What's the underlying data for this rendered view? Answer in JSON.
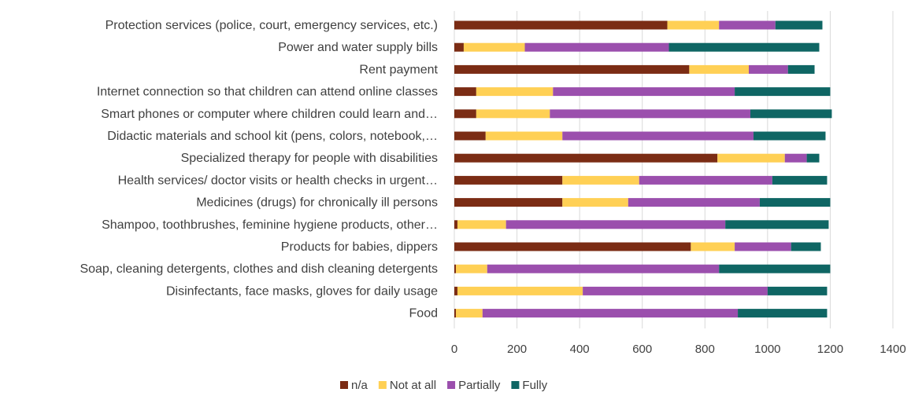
{
  "chart_data": {
    "type": "bar",
    "orientation": "horizontal",
    "stacked": true,
    "categories": [
      "Protection services (police, court, emergency services, etc.)",
      "Power and water supply bills",
      "Rent payment",
      "Internet connection so that children can attend online classes",
      "Smart phones or computer where children could learn and…",
      "Didactic materials and school kit (pens, colors, notebook,…",
      "Specialized therapy for people with disabilities",
      "Health services/ doctor visits or health checks in urgent…",
      "Medicines (drugs) for chronically ill persons",
      "Shampoo, toothbrushes, feminine hygiene products, other…",
      "Products for babies, dippers",
      "Soap, cleaning detergents, clothes and dish cleaning  detergents",
      "Disinfectants, face masks,  gloves for daily usage",
      "Food"
    ],
    "series": [
      {
        "name": "n/a",
        "color": "#7b2c14",
        "values": [
          680,
          30,
          750,
          70,
          70,
          100,
          840,
          345,
          345,
          10,
          755,
          5,
          10,
          5
        ]
      },
      {
        "name": "Not at all",
        "color": "#ffd055",
        "values": [
          165,
          195,
          190,
          245,
          235,
          245,
          215,
          245,
          210,
          155,
          140,
          100,
          400,
          85
        ]
      },
      {
        "name": "Partially",
        "color": "#9b4fad",
        "values": [
          180,
          460,
          125,
          580,
          640,
          610,
          70,
          425,
          420,
          700,
          180,
          740,
          590,
          815
        ]
      },
      {
        "name": "Fully",
        "color": "#0f6664",
        "values": [
          150,
          480,
          85,
          305,
          260,
          230,
          40,
          175,
          225,
          330,
          95,
          355,
          190,
          285
        ]
      }
    ],
    "xlim": [
      0,
      1400
    ],
    "xticks": [
      0,
      200,
      400,
      600,
      800,
      1000,
      1200,
      1400
    ],
    "grid": true,
    "legend_position": "bottom"
  }
}
